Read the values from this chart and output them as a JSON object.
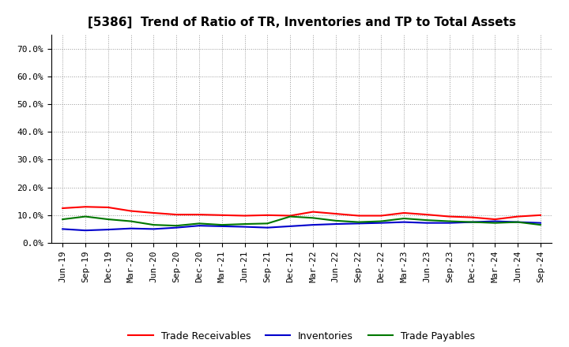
{
  "title": "[5386]  Trend of Ratio of TR, Inventories and TP to Total Assets",
  "x_labels": [
    "Jun-19",
    "Sep-19",
    "Dec-19",
    "Mar-20",
    "Jun-20",
    "Sep-20",
    "Dec-20",
    "Mar-21",
    "Jun-21",
    "Sep-21",
    "Dec-21",
    "Mar-22",
    "Jun-22",
    "Sep-22",
    "Dec-22",
    "Mar-23",
    "Jun-23",
    "Sep-23",
    "Dec-23",
    "Mar-24",
    "Jun-24",
    "Sep-24"
  ],
  "trade_receivables": [
    12.5,
    13.0,
    12.8,
    11.5,
    10.8,
    10.2,
    10.2,
    10.0,
    9.8,
    10.0,
    9.8,
    11.2,
    10.5,
    9.8,
    9.8,
    10.8,
    10.2,
    9.5,
    9.2,
    8.5,
    9.5,
    10.0
  ],
  "inventories": [
    5.0,
    4.5,
    4.8,
    5.2,
    5.0,
    5.5,
    6.2,
    6.0,
    5.8,
    5.5,
    6.0,
    6.5,
    6.8,
    7.0,
    7.2,
    7.5,
    7.2,
    7.2,
    7.5,
    7.8,
    7.5,
    7.2
  ],
  "trade_payables": [
    8.5,
    9.5,
    8.5,
    7.8,
    6.5,
    6.2,
    7.0,
    6.5,
    6.8,
    7.0,
    9.5,
    9.0,
    8.0,
    7.5,
    7.8,
    8.8,
    8.2,
    7.8,
    7.5,
    7.2,
    7.5,
    6.5
  ],
  "ylim": [
    0,
    75
  ],
  "yticks": [
    0,
    10,
    20,
    30,
    40,
    50,
    60,
    70
  ],
  "ytick_labels": [
    "0.0%",
    "10.0%",
    "20.0%",
    "30.0%",
    "40.0%",
    "50.0%",
    "60.0%",
    "70.0%"
  ],
  "line_colors": {
    "trade_receivables": "#ff0000",
    "inventories": "#0000cc",
    "trade_payables": "#007700"
  },
  "legend_labels": [
    "Trade Receivables",
    "Inventories",
    "Trade Payables"
  ],
  "background_color": "#ffffff",
  "grid_color": "#999999",
  "title_fontsize": 11,
  "tick_fontsize": 8,
  "legend_fontsize": 9
}
